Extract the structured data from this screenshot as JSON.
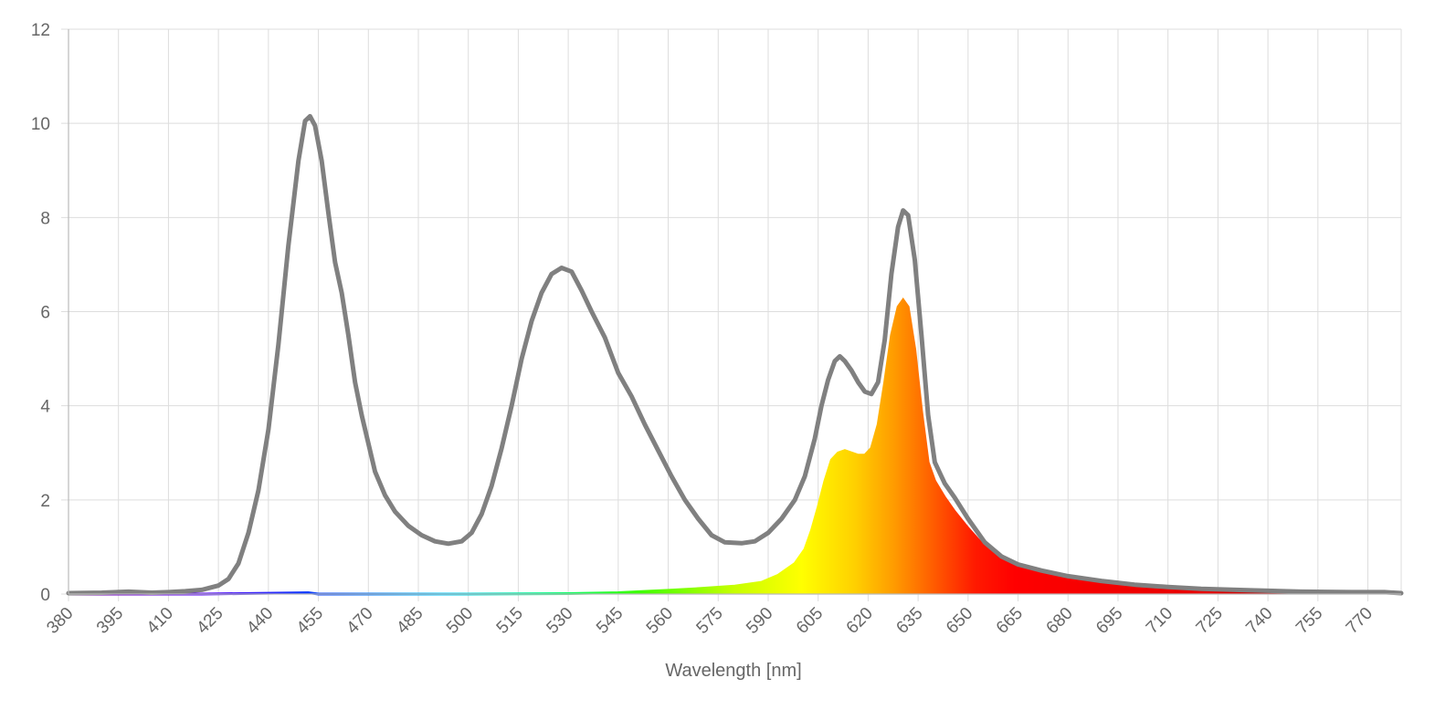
{
  "chart_data": {
    "type": "area",
    "title": "",
    "xlabel": "Wavelength [nm]",
    "ylabel": "",
    "xlim": [
      380,
      780
    ],
    "ylim": [
      0,
      12
    ],
    "grid": true,
    "legend": "none",
    "x_ticks": [
      380,
      395,
      410,
      425,
      440,
      455,
      470,
      485,
      500,
      515,
      530,
      545,
      560,
      575,
      590,
      605,
      620,
      635,
      650,
      665,
      680,
      695,
      710,
      725,
      740,
      755,
      770
    ],
    "y_ticks": [
      0,
      2,
      4,
      6,
      8,
      10,
      12
    ],
    "series": [
      {
        "style": "line",
        "color": "#808080",
        "points": [
          [
            380,
            0.02
          ],
          [
            390,
            0.03
          ],
          [
            398,
            0.05
          ],
          [
            405,
            0.03
          ],
          [
            410,
            0.04
          ],
          [
            415,
            0.06
          ],
          [
            420,
            0.09
          ],
          [
            425,
            0.18
          ],
          [
            428,
            0.32
          ],
          [
            431,
            0.65
          ],
          [
            434,
            1.3
          ],
          [
            437,
            2.2
          ],
          [
            440,
            3.5
          ],
          [
            443,
            5.3
          ],
          [
            446,
            7.4
          ],
          [
            449,
            9.2
          ],
          [
            451,
            10.05
          ],
          [
            452.5,
            10.15
          ],
          [
            454,
            9.95
          ],
          [
            456,
            9.2
          ],
          [
            458,
            8.1
          ],
          [
            460,
            7.05
          ],
          [
            462,
            6.4
          ],
          [
            464,
            5.5
          ],
          [
            466,
            4.5
          ],
          [
            468,
            3.8
          ],
          [
            470,
            3.2
          ],
          [
            472,
            2.6
          ],
          [
            475,
            2.1
          ],
          [
            478,
            1.75
          ],
          [
            482,
            1.45
          ],
          [
            486,
            1.25
          ],
          [
            490,
            1.12
          ],
          [
            494,
            1.07
          ],
          [
            498,
            1.12
          ],
          [
            501,
            1.3
          ],
          [
            504,
            1.7
          ],
          [
            507,
            2.3
          ],
          [
            510,
            3.1
          ],
          [
            513,
            4.0
          ],
          [
            516,
            5.0
          ],
          [
            519,
            5.8
          ],
          [
            522,
            6.4
          ],
          [
            525,
            6.8
          ],
          [
            528,
            6.93
          ],
          [
            531,
            6.85
          ],
          [
            534,
            6.45
          ],
          [
            537,
            6.0
          ],
          [
            541,
            5.45
          ],
          [
            545,
            4.7
          ],
          [
            549,
            4.2
          ],
          [
            553,
            3.6
          ],
          [
            557,
            3.05
          ],
          [
            561,
            2.5
          ],
          [
            565,
            2.0
          ],
          [
            569,
            1.6
          ],
          [
            573,
            1.25
          ],
          [
            577,
            1.1
          ],
          [
            582,
            1.08
          ],
          [
            586,
            1.12
          ],
          [
            590,
            1.3
          ],
          [
            594,
            1.6
          ],
          [
            598,
            2.0
          ],
          [
            601,
            2.5
          ],
          [
            604,
            3.3
          ],
          [
            606,
            4.0
          ],
          [
            608,
            4.55
          ],
          [
            610,
            4.95
          ],
          [
            611.5,
            5.05
          ],
          [
            613,
            4.95
          ],
          [
            615,
            4.75
          ],
          [
            617,
            4.5
          ],
          [
            619,
            4.3
          ],
          [
            621,
            4.25
          ],
          [
            623,
            4.5
          ],
          [
            625,
            5.4
          ],
          [
            627,
            6.8
          ],
          [
            629,
            7.8
          ],
          [
            630.5,
            8.15
          ],
          [
            632,
            8.05
          ],
          [
            634,
            7.1
          ],
          [
            636,
            5.5
          ],
          [
            638,
            3.8
          ],
          [
            640,
            2.8
          ],
          [
            643,
            2.35
          ],
          [
            646,
            2.05
          ],
          [
            650,
            1.6
          ],
          [
            655,
            1.1
          ],
          [
            660,
            0.8
          ],
          [
            665,
            0.63
          ],
          [
            672,
            0.5
          ],
          [
            680,
            0.38
          ],
          [
            690,
            0.28
          ],
          [
            700,
            0.2
          ],
          [
            710,
            0.15
          ],
          [
            720,
            0.11
          ],
          [
            735,
            0.08
          ],
          [
            750,
            0.05
          ],
          [
            765,
            0.04
          ],
          [
            775,
            0.04
          ],
          [
            780,
            0.02
          ]
        ]
      },
      {
        "style": "spectral-fill",
        "points": [
          [
            380,
            0.0
          ],
          [
            420,
            0.0
          ],
          [
            452,
            0.03
          ],
          [
            455,
            0.0
          ],
          [
            500,
            0.0
          ],
          [
            530,
            0.01
          ],
          [
            545,
            0.03
          ],
          [
            560,
            0.08
          ],
          [
            570,
            0.12
          ],
          [
            580,
            0.17
          ],
          [
            588,
            0.25
          ],
          [
            593,
            0.4
          ],
          [
            598,
            0.65
          ],
          [
            601,
            0.95
          ],
          [
            603,
            1.35
          ],
          [
            605,
            1.85
          ],
          [
            607,
            2.4
          ],
          [
            609,
            2.85
          ],
          [
            611,
            3.0
          ],
          [
            613,
            3.05
          ],
          [
            615,
            3.0
          ],
          [
            617,
            2.95
          ],
          [
            619,
            2.95
          ],
          [
            621,
            3.1
          ],
          [
            623,
            3.6
          ],
          [
            625,
            4.5
          ],
          [
            627,
            5.5
          ],
          [
            629,
            6.1
          ],
          [
            630.5,
            6.25
          ],
          [
            632,
            6.1
          ],
          [
            634,
            5.2
          ],
          [
            636,
            3.9
          ],
          [
            638,
            2.8
          ],
          [
            640,
            2.4
          ],
          [
            643,
            2.05
          ],
          [
            646,
            1.75
          ],
          [
            650,
            1.4
          ],
          [
            655,
            1.0
          ],
          [
            660,
            0.78
          ],
          [
            665,
            0.62
          ],
          [
            672,
            0.5
          ],
          [
            680,
            0.38
          ],
          [
            690,
            0.28
          ],
          [
            700,
            0.2
          ],
          [
            710,
            0.15
          ],
          [
            720,
            0.11
          ],
          [
            735,
            0.08
          ],
          [
            750,
            0.05
          ],
          [
            765,
            0.04
          ],
          [
            775,
            0.04
          ],
          [
            780,
            0.02
          ]
        ]
      }
    ]
  }
}
